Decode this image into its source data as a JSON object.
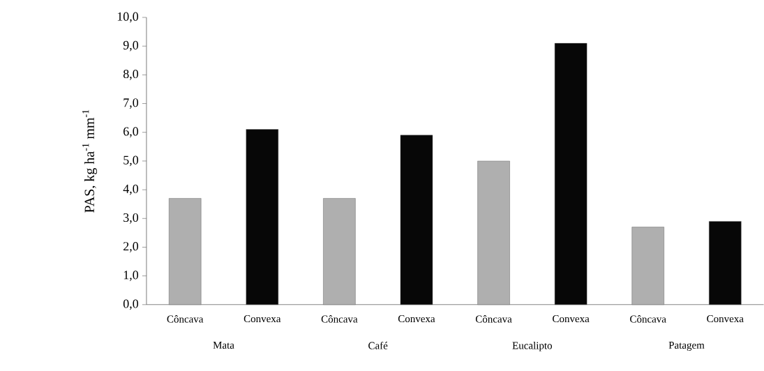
{
  "chart_data": {
    "type": "bar",
    "ylabel": "PAS, kg ha$^{-1}$ mm$^{-1}$",
    "categories": [
      "Côncava",
      "Convexa",
      "Côncava",
      "Convexa",
      "Côncava",
      "Convexa",
      "Côncava",
      "Convexa"
    ],
    "values": [
      3.7,
      6.1,
      3.7,
      5.9,
      5.0,
      9.1,
      2.7,
      2.9
    ],
    "colors": [
      "#afafaf",
      "#070707",
      "#afafaf",
      "#070707",
      "#afafaf",
      "#070707",
      "#afafaf",
      "#070707"
    ],
    "ylim": [
      0,
      10
    ],
    "yticks": [
      {
        "value": 0,
        "label": "0,0"
      },
      {
        "value": 1,
        "label": "1,0"
      },
      {
        "value": 2,
        "label": "2,0"
      },
      {
        "value": 3,
        "label": "3,0"
      },
      {
        "value": 4,
        "label": "4,0"
      },
      {
        "value": 5,
        "label": "5,0"
      },
      {
        "value": 6,
        "label": "6,0"
      },
      {
        "value": 7,
        "label": "7,0"
      },
      {
        "value": 8,
        "label": "8,0"
      },
      {
        "value": 9,
        "label": "9,0"
      },
      {
        "value": 10,
        "label": "10,0"
      }
    ],
    "annotations": [
      "Mata",
      "Café",
      "Eucalipto",
      "Patagem"
    ],
    "grid": false
  }
}
